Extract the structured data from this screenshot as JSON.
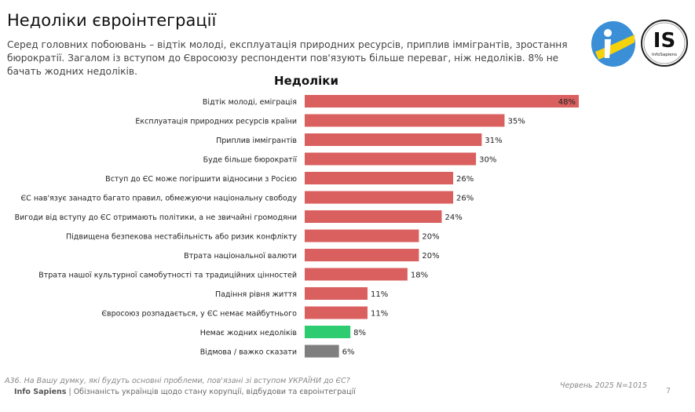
{
  "header": {
    "title": "Недоліки євроінтеграції",
    "subtitle": "Серед головних побоювань – відтік молоді, експлуатація природних ресурсів, приплив іммігрантів, зростання бюрократії. Загалом із вступом до Євросоюзу респонденти пов'язують більше переваг, ніж недоліків. 8% не бачать жодних недоліків."
  },
  "logos": {
    "left": "ukraine-figure-logo",
    "right": "IS InfoSapiens"
  },
  "chart_data": {
    "type": "bar",
    "orientation": "horizontal",
    "title": "Недоліки",
    "unit": "%",
    "categories": [
      "Відтік молоді, еміграція",
      "Експлуатація природних ресурсів країни",
      "Приплив іммігрантів",
      "Буде більше бюрократії",
      "Вступ до ЄС може погіршити відносини з Росією",
      "ЄС нав'язує занадто багато правил, обмежуючи національну свободу",
      "Вигоди від вступу до ЄС отримають політики, а не звичайні громодяни",
      "Підвищена безпекова нестабільність або ризик конфлікту",
      "Втрата національної валюти",
      "Втрата нашої культурної самобутності та традиційних цінностей",
      "Падіння рівня життя",
      "Євросоюз розпадається, у ЄС немає майбутнього",
      "Немає жодних недоліків",
      "Відмова / важко сказати"
    ],
    "values": [
      48,
      35,
      31,
      30,
      26,
      26,
      24,
      20,
      20,
      18,
      11,
      11,
      8,
      6
    ],
    "labels": [
      "48%",
      "35%",
      "31%",
      "30%",
      "26%",
      "26%",
      "24%",
      "20%",
      "20%",
      "18%",
      "11%",
      "11%",
      "8%",
      "6%"
    ],
    "colors": [
      "#d9605f",
      "#d9605f",
      "#d9605f",
      "#d9605f",
      "#d9605f",
      "#d9605f",
      "#d9605f",
      "#d9605f",
      "#d9605f",
      "#d9605f",
      "#d9605f",
      "#d9605f",
      "#2ecc71",
      "#7f7f7f"
    ],
    "xlim": [
      0,
      48
    ],
    "grid": false
  },
  "footer": {
    "question": "A36. На Вашу думку, які будуть основні проблеми, пов'язані зі вступом УКРАЇНИ до ЄС?",
    "brand": "Info Sapiens",
    "separator": " | ",
    "report": "Обізнаність українців щодо стану корупції, відбудови та євроінтеграції",
    "date": "Червень 2025 N=1015",
    "page": "7"
  }
}
